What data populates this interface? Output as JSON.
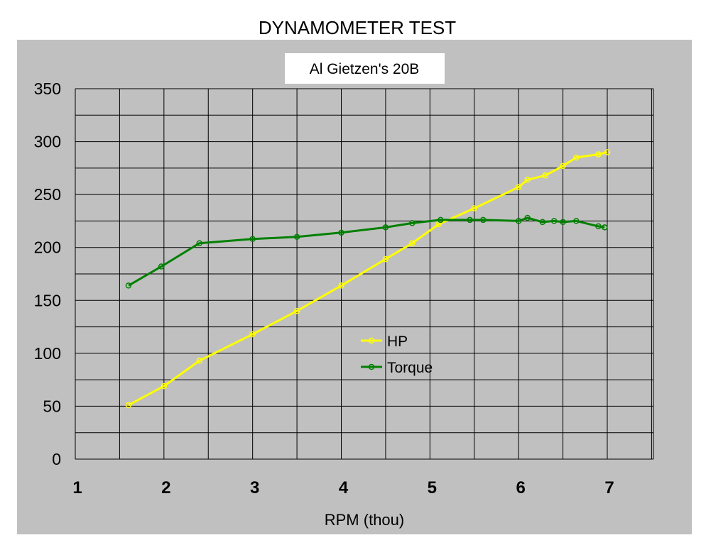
{
  "chart_data": {
    "type": "line",
    "title": "DYNAMOMETER TEST",
    "subtitle": "Al Gietzen's 20B",
    "xlabel": "RPM (thou)",
    "ylabel": "",
    "xlim": [
      1,
      7
    ],
    "ylim": [
      0,
      350
    ],
    "xticks": [
      1,
      2,
      3,
      4,
      5,
      6,
      7
    ],
    "yticks": [
      0,
      50,
      100,
      150,
      200,
      250,
      300,
      350
    ],
    "grid": true,
    "legend": "center",
    "series": [
      {
        "name": "HP",
        "color": "#ffff00",
        "x": [
          1.6,
          2.0,
          2.4,
          3.0,
          3.5,
          4.0,
          4.5,
          4.8,
          5.1,
          5.5,
          6.0,
          6.1,
          6.3,
          6.5,
          6.65,
          6.9,
          7.0
        ],
        "y": [
          51,
          69,
          93,
          118,
          140,
          164,
          189,
          204,
          222,
          237,
          257,
          264,
          268,
          277,
          285,
          288,
          290
        ]
      },
      {
        "name": "Torque",
        "color": "#008000",
        "x": [
          1.6,
          1.97,
          2.4,
          3.0,
          3.5,
          4.0,
          4.5,
          4.8,
          5.12,
          5.45,
          5.6,
          6.0,
          6.1,
          6.27,
          6.4,
          6.5,
          6.65,
          6.9,
          6.97
        ],
        "y": [
          164,
          182,
          204,
          208,
          210,
          214,
          219,
          223,
          226,
          226,
          226,
          225,
          228,
          224,
          225,
          224,
          225,
          220,
          219
        ]
      }
    ]
  },
  "colors": {
    "background": "#c0c0c0",
    "grid": "#000000",
    "hp": "#ffff00",
    "torque": "#008000"
  }
}
